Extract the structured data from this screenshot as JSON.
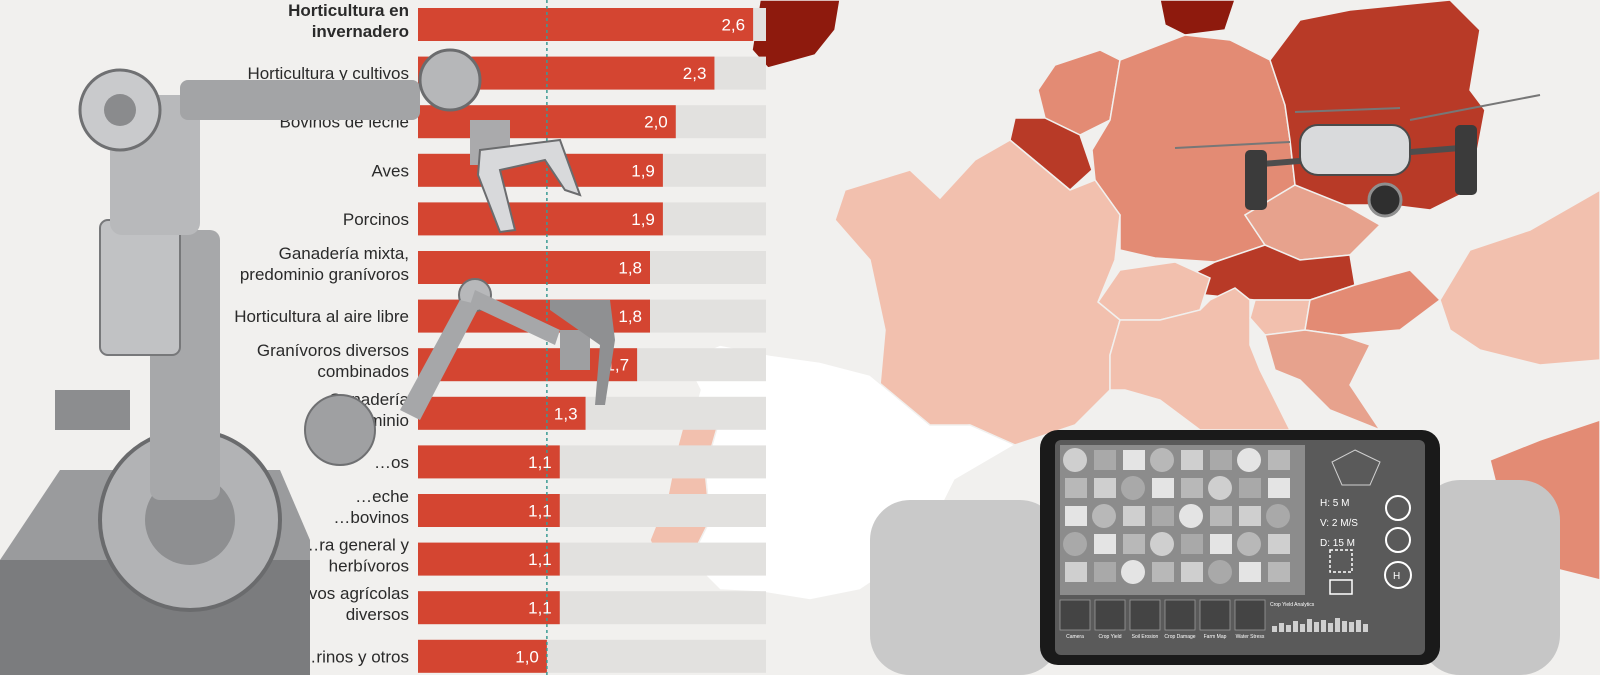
{
  "chart_data": {
    "type": "bar",
    "orientation": "horizontal",
    "categories": [
      [
        "Horticultura en",
        "invernadero"
      ],
      [
        "Horticultura y cultivos"
      ],
      [
        "Bovinos de leche"
      ],
      [
        "Aves"
      ],
      [
        "Porcinos"
      ],
      [
        "Ganadería mixta,",
        "predominio granívoros"
      ],
      [
        "Horticultura al aire libre"
      ],
      [
        "Granívoros diversos",
        "combinados"
      ],
      [
        "Ganadería",
        "predominio"
      ],
      [
        "…os"
      ],
      [
        "…eche",
        "…bovinos"
      ],
      [
        "…ra general y",
        "herbívoros"
      ],
      [
        "…vos agrícolas",
        "diversos"
      ],
      [
        "…rinos y otros"
      ]
    ],
    "highlight_index": 0,
    "values": [
      2.6,
      2.3,
      2.0,
      1.9,
      1.9,
      1.8,
      1.8,
      1.7,
      1.3,
      1.1,
      1.1,
      1.1,
      1.1,
      1.0
    ],
    "value_labels": [
      "2,6",
      "2,3",
      "2,0",
      "1,9",
      "1,9",
      "1,8",
      "1,8",
      "1,7",
      "1,3",
      "1,1",
      "1,1",
      "1,1",
      "1,1",
      "1,0"
    ],
    "xlim": [
      0,
      2.7
    ],
    "reference_line": 1.0,
    "colors": {
      "bar": "#d44531",
      "track": "#e2e1df",
      "reference": "#3a9a94",
      "label": "#2a2a2a",
      "value": "#ffffff"
    }
  },
  "map": {
    "countries": [
      {
        "name": "Spain",
        "color": "#8e1a0d"
      },
      {
        "name": "Italy",
        "color": "#8e1a0d"
      },
      {
        "name": "Portugal",
        "color": "#e38b74"
      },
      {
        "name": "France",
        "color": "#b83a27"
      },
      {
        "name": "Germany",
        "color": "#e38b74"
      },
      {
        "name": "Netherlands",
        "color": "#b83a27"
      },
      {
        "name": "Belgium",
        "color": "#e7a28d"
      },
      {
        "name": "Poland",
        "color": "#b83a27"
      },
      {
        "name": "Czechia",
        "color": "#f2c0ae"
      },
      {
        "name": "Austria",
        "color": "#f2c0ae"
      },
      {
        "name": "Switzerland",
        "color": "#ffffff"
      },
      {
        "name": "Slovenia",
        "color": "#f2c0ae"
      },
      {
        "name": "Croatia",
        "color": "#f2c0ae"
      },
      {
        "name": "Hungary",
        "color": "#f2c0ae"
      },
      {
        "name": "Romania",
        "color": "#e38b74"
      },
      {
        "name": "Denmark",
        "color": "#e7a28d"
      },
      {
        "name": "Great Britain",
        "color": "#f2c0ae"
      },
      {
        "name": "Greece",
        "color": "#e38b74"
      }
    ]
  },
  "tablet": {
    "readouts": [
      "H: 5 M",
      "V: 2 M/S",
      "D: 15 M"
    ],
    "home_button": "H",
    "menu": [
      "Camera",
      "Crop Yield",
      "Soil Erosion",
      "Crop Damage",
      "Farm Map",
      "Water Stress"
    ],
    "graph_title": "Crop Yield Analytics"
  }
}
